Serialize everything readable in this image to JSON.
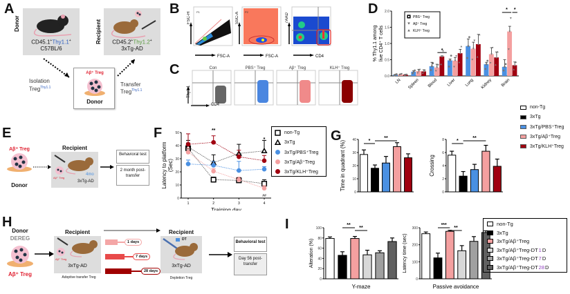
{
  "panels": {
    "A": {
      "label": "A",
      "donor_side": "Donor",
      "donor_line1_pre": "CD45.1",
      "donor_line1_thy": "Thy1.1",
      "donor_line2": "C57BL/6",
      "recipient_side": "Recipient",
      "recipient_line1_pre": "CD45.2",
      "recipient_line1_thy": "Thy1.2",
      "recipient_line2": "3xTg-AD",
      "isolation": "Isolation",
      "isolation_treg": "Treg",
      "isolation_sup": "Thy1.1",
      "transfer": "Transfer",
      "transfer_treg": "Treg",
      "transfer_sup": "Thy1.1",
      "center_title": "Aβ⁺ Treg",
      "center_label": "Donor"
    },
    "B": {
      "label": "B",
      "plots": [
        {
          "y": "FSC-H",
          "x": "FSC-A",
          "gate": "P1"
        },
        {
          "y": "SSC-A",
          "x": "FSC-A",
          "gate": "P2"
        },
        {
          "y": "7AAD",
          "x": "CD4",
          "gate": ""
        }
      ]
    },
    "C": {
      "label": "C",
      "y_axis": "Thy1.1",
      "x_axis": "CD4",
      "plots": [
        {
          "title": "Con",
          "color": "#666666"
        },
        {
          "title": "PBS⁺ Treg",
          "color": "#4a86e0"
        },
        {
          "title": "Aβ⁺ Treg",
          "color": "#f08a8a"
        },
        {
          "title": "KLH⁺ Treg",
          "color": "#8b0000"
        }
      ]
    },
    "E": {
      "label": "E",
      "donor_title": "Aβ⁺ Treg",
      "donor_label": "Donor",
      "recipient_title": "Recipient",
      "recipient_cells": "Aβ⁺ Treg",
      "age": "4mo",
      "strain": "3xTg-AD",
      "box1": "Behavioral test",
      "box2": "2 month post-transfer"
    },
    "H": {
      "label": "H",
      "donor1": "Donor",
      "donor2": "DEREG",
      "donor_cells": "Aβ⁺ Treg",
      "recipient1_title": "Recipient",
      "recipient1_cells": "Aβ⁺ Treg",
      "recipient1_strain": "3xTg-AD",
      "recipient1_caption": "Adoptive transfer Treg",
      "timelines": [
        "1 days",
        "7 days",
        "28 days"
      ],
      "timeline_colors": [
        "#f4a6a6",
        "#e84a4a",
        "#a00000"
      ],
      "recipient2_title": "Recipient",
      "recipient2_dt": "DT",
      "recipient2_strain": "3xTg-AD",
      "recipient2_caption": "Depletion Treg",
      "box1": "Behavioral test",
      "box2": "Day 56 post-transfer"
    }
  },
  "legend_G": {
    "items": [
      {
        "label": "non-Tg",
        "color": "#ffffff"
      },
      {
        "label": "3xTg",
        "color": "#000000"
      },
      {
        "label": "3xTg/PBS⁺Treg",
        "color": "#4a90e2"
      },
      {
        "label": "3xTg/Aβ⁺Treg",
        "color": "#f4a0a0"
      },
      {
        "label": "3xTg/KLH⁺Treg",
        "color": "#a00010"
      }
    ]
  },
  "legend_I": {
    "items": [
      {
        "label": "non-Tg",
        "suffix": "",
        "color": "#ffffff"
      },
      {
        "label": "3xTg",
        "suffix": "",
        "color": "#000000"
      },
      {
        "label": "3xTg/Aβ⁺Treg",
        "suffix": "",
        "color": "#f4a0a0"
      },
      {
        "label": "3xTg/Aβ⁺Treg-DT ",
        "num": "1",
        "suffix": " D",
        "color": "#d8d8d8"
      },
      {
        "label": "3xTg/Aβ⁺Treg-DT ",
        "num": "7",
        "suffix": " D",
        "color": "#a0a0a0"
      },
      {
        "label": "3xTg/Aβ⁺Treg-DT ",
        "num": "28",
        "suffix": " D",
        "color": "#606060"
      }
    ]
  },
  "chart_data": [
    {
      "id": "D",
      "panel": "D",
      "type": "bar",
      "ylabel": "% Thy1.1 among live CD4⁺ T cells",
      "ylim": [
        0,
        2.0
      ],
      "yticks": [
        "0.0",
        "0.5",
        "1.0",
        "1.5",
        "2.0"
      ],
      "categories": [
        "LN",
        "Spleen",
        "Blood",
        "Liver",
        "Lung",
        "Kidney",
        "Brain"
      ],
      "legend": "top-left",
      "series": [
        {
          "name": "PBS⁺ Treg",
          "marker": "circle",
          "color": "#4a90e2",
          "values": [
            0.04,
            0.13,
            0.3,
            0.48,
            0.92,
            0.36,
            0.28
          ],
          "errors": [
            0.01,
            0.03,
            0.12,
            0.04,
            0.22,
            0.06,
            0.22
          ]
        },
        {
          "name": "Aβ⁺ Treg",
          "marker": "triangle-down",
          "color": "#f4a0a0",
          "values": [
            0.05,
            0.15,
            0.26,
            0.47,
            0.84,
            0.67,
            1.37
          ],
          "errors": [
            0.01,
            0.05,
            0.1,
            0.1,
            0.2,
            0.2,
            0.16
          ]
        },
        {
          "name": "KLH⁺ Treg",
          "marker": "triangle-up",
          "color": "#a00010",
          "values": [
            0.04,
            0.14,
            0.6,
            0.7,
            0.98,
            0.57,
            0.33
          ],
          "errors": [
            0.01,
            0.05,
            0.02,
            0.12,
            0.3,
            0.17,
            0.1
          ]
        }
      ],
      "significance": [
        {
          "category": "Blood",
          "label": "*"
        },
        {
          "category": "Brain",
          "label": "*"
        },
        {
          "category": "Brain",
          "label": "*"
        }
      ]
    },
    {
      "id": "F",
      "panel": "F",
      "type": "line",
      "xlabel": "Training day",
      "ylabel": "Latency to platform (Sec)",
      "x": [
        1,
        2,
        3,
        4
      ],
      "ylim": [
        0,
        50
      ],
      "yticks": [
        "0",
        "10",
        "20",
        "30",
        "40",
        "50"
      ],
      "legend": "right",
      "series": [
        {
          "name": "non-Tg",
          "marker": "square-open",
          "color": "#000000",
          "values": [
            38,
            14,
            13.5,
            11
          ],
          "errors": [
            4,
            2,
            2,
            3
          ]
        },
        {
          "name": "3xTg",
          "marker": "triangle-open",
          "color": "#000000",
          "values": [
            39,
            27,
            34,
            36
          ],
          "errors": [
            5,
            6,
            7,
            8
          ]
        },
        {
          "name": "3xTg/PBS⁺Treg",
          "marker": "circle",
          "color": "#4a90e2",
          "values": [
            26,
            25,
            21,
            22
          ],
          "errors": [
            3,
            3,
            7,
            2
          ]
        },
        {
          "name": "3xTg/Aβ⁺Treg",
          "marker": "circle",
          "color": "#f4a0a0",
          "values": [
            35,
            20.5,
            14,
            7.5
          ],
          "errors": [
            3,
            2,
            2,
            2
          ]
        },
        {
          "name": "3xTg/KLH⁺Treg",
          "marker": "circle",
          "color": "#a00010",
          "values": [
            41,
            42.5,
            31.5,
            28.5
          ],
          "errors": [
            8,
            5,
            5,
            4
          ]
        }
      ],
      "annotations": [
        {
          "x": 2,
          "label": "**"
        },
        {
          "x": 4,
          "label": "*"
        },
        {
          "x": 4,
          "label": "##",
          "position": "below"
        }
      ]
    },
    {
      "id": "G1",
      "panel": "G",
      "type": "bar",
      "ylabel": "Time in quadrant (%)",
      "ylim": [
        0,
        40
      ],
      "yticks": [
        "0",
        "10",
        "20",
        "30",
        "40"
      ],
      "categories": [
        "non-Tg",
        "3xTg",
        "3xTg/PBS⁺Treg",
        "3xTg/Aβ⁺Treg",
        "3xTg/KLH⁺Treg"
      ],
      "values": [
        28.5,
        18,
        22,
        34.5,
        26
      ],
      "errors": [
        3.5,
        2.5,
        5,
        3,
        3
      ],
      "colors": [
        "#ffffff",
        "#000000",
        "#4a90e2",
        "#f4a0a0",
        "#a00010"
      ],
      "significance": [
        {
          "from": 0,
          "to": 1,
          "label": "*"
        },
        {
          "from": 1,
          "to": 3,
          "label": "**"
        },
        {
          "from": 1,
          "to": 4,
          "label": "*"
        }
      ]
    },
    {
      "id": "G2",
      "panel": "G",
      "type": "bar",
      "ylabel": "Crossing",
      "ylim": [
        0,
        8
      ],
      "yticks": [
        "0",
        "2",
        "4",
        "6",
        "8"
      ],
      "categories": [
        "non-Tg",
        "3xTg",
        "3xTg/PBS⁺Treg",
        "3xTg/Aβ⁺Treg",
        "3xTg/KLH⁺Treg"
      ],
      "values": [
        5.6,
        2.4,
        3.4,
        6.2,
        3.9
      ],
      "errors": [
        0.6,
        0.7,
        0.8,
        0.9,
        1.1
      ],
      "colors": [
        "#ffffff",
        "#000000",
        "#4a90e2",
        "#f4a0a0",
        "#a00010"
      ],
      "significance": [
        {
          "from": 0,
          "to": 1,
          "label": "*"
        },
        {
          "from": 1,
          "to": 3,
          "label": "**"
        }
      ]
    },
    {
      "id": "I1",
      "panel": "I",
      "type": "bar",
      "xlabel": "Y-maze",
      "ylabel": "Alteration (%)",
      "ylim": [
        0,
        100
      ],
      "yticks": [
        "0",
        "20",
        "40",
        "60",
        "80",
        "100"
      ],
      "categories": [
        "non-Tg",
        "3xTg",
        "3xTg/Aβ⁺Treg",
        "3xTg/Aβ⁺Treg-DT 1 D",
        "3xTg/Aβ⁺Treg-DT 7 D",
        "3xTg/Aβ⁺Treg-DT 28 D"
      ],
      "values": [
        79,
        46,
        79,
        47,
        51,
        73
      ],
      "errors": [
        3,
        7,
        4,
        9,
        4,
        7
      ],
      "colors": [
        "#ffffff",
        "#000000",
        "#f4a0a0",
        "#d8d8d8",
        "#a0a0a0",
        "#606060"
      ],
      "significance": [
        {
          "from": 1,
          "to": 2,
          "label": "**"
        },
        {
          "from": 2,
          "to": 3,
          "label": "**"
        },
        {
          "from": 2,
          "to": 4,
          "label": "*"
        }
      ]
    },
    {
      "id": "I2",
      "panel": "I",
      "type": "bar",
      "xlabel": "Passive avoidance",
      "ylabel": "Latency time (sec)",
      "ylim": [
        0,
        300
      ],
      "yticks": [
        "0",
        "100",
        "200",
        "300"
      ],
      "categories": [
        "non-Tg",
        "3xTg",
        "3xTg/Aβ⁺Treg",
        "3xTg/Aβ⁺Treg-DT 1 D",
        "3xTg/Aβ⁺Treg-DT 7 D",
        "3xTg/Aβ⁺Treg-DT 28 D"
      ],
      "values": [
        265,
        123,
        279,
        165,
        220,
        272
      ],
      "errors": [
        10,
        28,
        6,
        30,
        28,
        10
      ],
      "colors": [
        "#ffffff",
        "#000000",
        "#f4a0a0",
        "#d8d8d8",
        "#a0a0a0",
        "#606060"
      ],
      "significance": [
        {
          "from": 1,
          "to": 2,
          "label": "***"
        },
        {
          "from": 2,
          "to": 3,
          "label": "**"
        }
      ]
    }
  ]
}
